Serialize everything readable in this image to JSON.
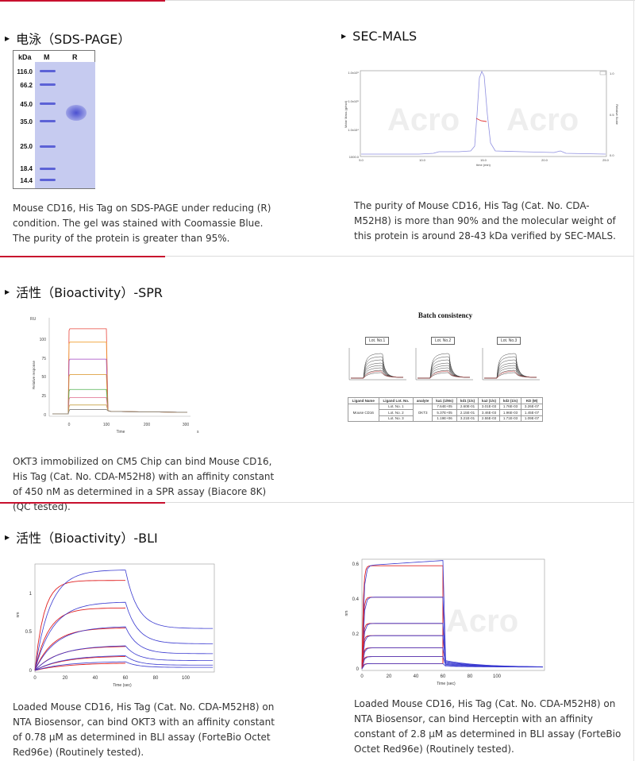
{
  "sections": {
    "sds": {
      "title": "电泳（SDS-PAGE）",
      "gel": {
        "kda_label": "kDa",
        "lane_m": "M",
        "lane_r": "R",
        "markers": [
          "116.0",
          "66.2",
          "45.0",
          "35.0",
          "25.0",
          "18.4",
          "14.4"
        ]
      },
      "caption": "Mouse CD16, His Tag on SDS-PAGE under reducing (R) condition. The gel was stained with Coomassie Blue. The purity of the protein is greater than 95%."
    },
    "secmals": {
      "title": "SEC-MALS",
      "chart": {
        "ylabel_left": "Molar Mass (g/mol)",
        "ylabel_right": "Relative Scale",
        "xlabel": "time (min)",
        "yticks": [
          "1.0x10⁶",
          "1.0x10⁵",
          "1.0x10⁴",
          "1000.0"
        ],
        "xticks": [
          "5.0",
          "10.0",
          "15.0",
          "20.0",
          "25.0"
        ],
        "rticks": [
          "1.0",
          "0.5",
          "0.0"
        ],
        "watermark": "Acro"
      },
      "caption": "The purity of Mouse CD16, His Tag (Cat. No. CDA-M52H8) is more than 90% and the molecular weight of this protein is around 28-43 kDa verified by SEC-MALS."
    },
    "spr": {
      "title": "活性（Bioactivity）-SPR",
      "chart": {
        "y_unit": "RU",
        "ylabel": "Relative response",
        "xlabel": "Time",
        "x_unit": "s",
        "yticks": [
          "100",
          "75",
          "50",
          "25",
          "0"
        ],
        "xticks": [
          "0",
          "100",
          "200",
          "300"
        ]
      },
      "batch": {
        "title": "Batch consistency",
        "lots": [
          "Lot. No.1",
          "Lot. No.2",
          "Lot. No.3"
        ],
        "headers": [
          "Ligand Name",
          "Ligand Lot. No.",
          "analyte",
          "ka1 (1/Ms)",
          "kd1 (1/s)",
          "ka2 (1/s)",
          "kd2 (1/s)",
          "KD (M)"
        ],
        "ligand": "Mouse CD16",
        "analyte": "OKT3",
        "rows": [
          [
            "Lot. No. 1",
            "7.64E+05",
            "2.60E-01",
            "3.01E-03",
            "1.76E-03",
            "3.26E-07"
          ],
          [
            "Lot. No. 2",
            "5.37E+05",
            "2.15E-01",
            "3.46E-03",
            "1.96E-03",
            "1.45E-07"
          ],
          [
            "Lot. No. 3",
            "1.19E+06",
            "3.21E-01",
            "2.55E-03",
            "1.71E-03",
            "1.09E-07"
          ]
        ]
      },
      "caption": "OKT3 immobilized on CM5 Chip can bind Mouse CD16, His Tag (Cat. No. CDA-M52H8) with an affinity constant of 450 nM as determined in a SPR assay (Biacore 8K) (QC tested)."
    },
    "bli": {
      "title": "活性（Bioactivity）-BLI",
      "left": {
        "ylabel": "nm",
        "xlabel": "Time (sec)",
        "yticks": [
          "1",
          "0.5",
          "0"
        ],
        "xticks": [
          "0",
          "20",
          "40",
          "60",
          "80",
          "100"
        ],
        "caption": "Loaded Mouse CD16, His Tag (Cat. No. CDA-M52H8) on NTA Biosensor, can bind OKT3 with an affinity constant of 0.78 μM as determined in BLI assay (ForteBio Octet Red96e) (Routinely tested)."
      },
      "right": {
        "ylabel": "nm",
        "xlabel": "Time (sec)",
        "yticks": [
          "0.6",
          "0.4",
          "0.2",
          "0"
        ],
        "xticks": [
          "0",
          "20",
          "40",
          "60",
          "80",
          "100"
        ],
        "watermark": "Acro",
        "caption": "Loaded Mouse CD16, His Tag (Cat. No. CDA-M52H8) on NTA Biosensor, can bind Herceptin with an affinity constant of 2.8 μM as determined in BLI assay (ForteBio Octet Red96e) (Routinely tested)."
      }
    }
  },
  "colors": {
    "accent": "#c8102e",
    "gel_bg": "#c9cdf1",
    "band": "#5860d8",
    "spr_series": [
      "#e8443a",
      "#f0a030",
      "#a040c0",
      "#d89020",
      "#50b050",
      "#e06a8a",
      "#c8a040",
      "#808080"
    ],
    "bli_fit": "#e02020",
    "bli_data": "#3a3ad0"
  }
}
